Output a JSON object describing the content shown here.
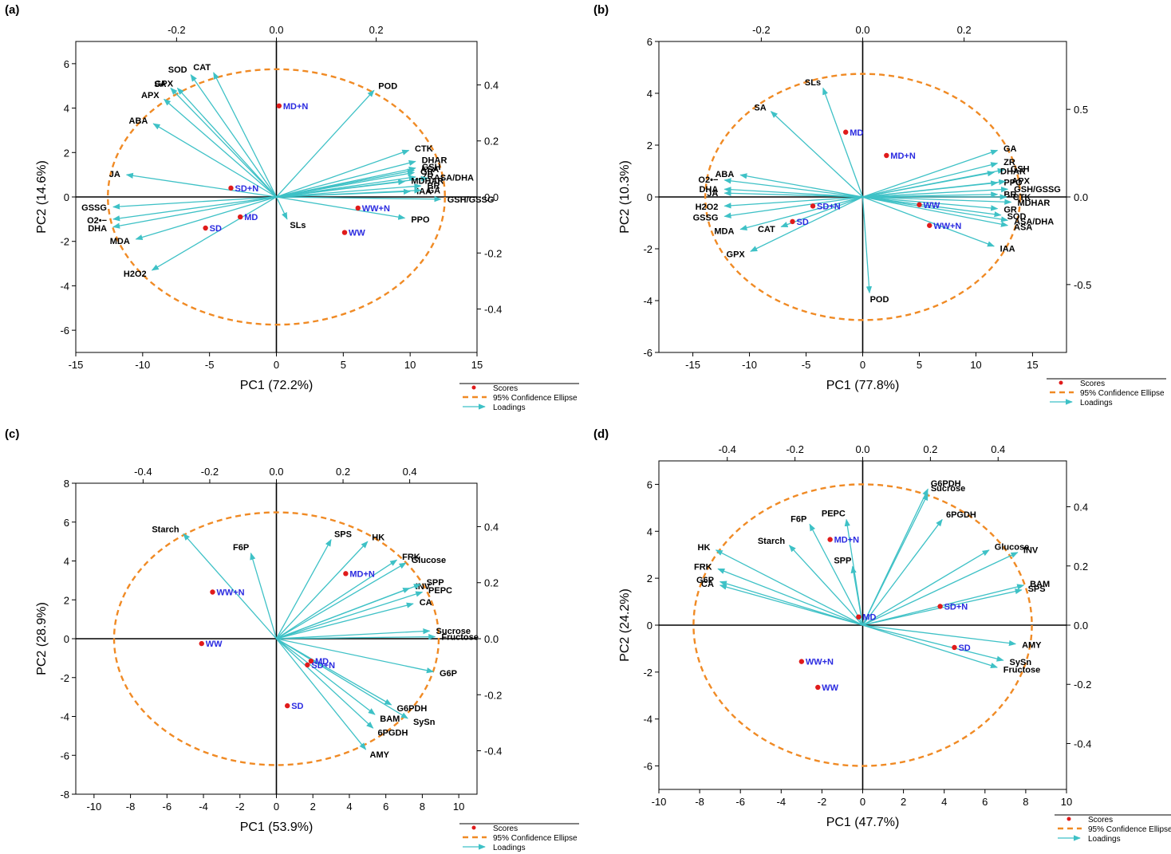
{
  "colors": {
    "axis": "#000000",
    "score": "#e01b1b",
    "score_label": "#2a2ae0",
    "loading": "#3ec1c6",
    "loading_label": "#000000",
    "ellipse": "#f08a24"
  },
  "legend": {
    "scores": "Scores",
    "ellipse": "95% Confidence Ellipse",
    "loadings": "Loadings"
  },
  "chart_data": [
    {
      "type": "scatter",
      "panel_label": "(a)",
      "xlabel": "PC1 (72.2%)",
      "ylabel": "PC2 (14.6%)",
      "xlim": [
        -15,
        15
      ],
      "ylim": [
        -7,
        7
      ],
      "x_ticks": [
        -15,
        -10,
        -5,
        0,
        5,
        10,
        15
      ],
      "y_ticks": [
        -6,
        -4,
        -2,
        0,
        2,
        4,
        6
      ],
      "top_ticks": [
        "-0.2",
        "0.0",
        "0.2"
      ],
      "right_ticks": [
        "0.4",
        "0.2",
        "0.0",
        "-0.2",
        "-0.4"
      ],
      "legend_placement": "bottom-right",
      "ellipse": {
        "cx": 0,
        "cy": 0,
        "rx": 12.6,
        "ry": 5.75
      },
      "scores": [
        {
          "label": "MD+N",
          "x": 0.2,
          "y": 4.1
        },
        {
          "label": "SD+N",
          "x": -3.4,
          "y": 0.4
        },
        {
          "label": "MD",
          "x": -2.7,
          "y": -0.9
        },
        {
          "label": "SD",
          "x": -5.3,
          "y": -1.4
        },
        {
          "label": "WW+N",
          "x": 6.1,
          "y": -0.5
        },
        {
          "label": "WW",
          "x": 5.1,
          "y": -1.6
        }
      ],
      "loadings": [
        {
          "label": "SOD",
          "x": -6.4,
          "y": 5.5
        },
        {
          "label": "CAT",
          "x": -4.7,
          "y": 5.6
        },
        {
          "label": "SA",
          "x": -7.9,
          "y": 4.9
        },
        {
          "label": "GPX",
          "x": -7.4,
          "y": 4.9
        },
        {
          "label": "APX",
          "x": -8.4,
          "y": 4.4
        },
        {
          "label": "ABA",
          "x": -9.2,
          "y": 3.3
        },
        {
          "label": "JA",
          "x": -11.2,
          "y": 1.0
        },
        {
          "label": "GSSG",
          "x": -12.2,
          "y": -0.45
        },
        {
          "label": "O2•−",
          "x": -12.2,
          "y": -1.0
        },
        {
          "label": "DHA",
          "x": -12.2,
          "y": -1.35
        },
        {
          "label": "MDA",
          "x": -10.5,
          "y": -1.9
        },
        {
          "label": "H2O2",
          "x": -9.3,
          "y": -3.3
        },
        {
          "label": "POD",
          "x": 7.3,
          "y": 4.8
        },
        {
          "label": "CTK",
          "x": 9.9,
          "y": 2.1
        },
        {
          "label": "DHAR",
          "x": 10.4,
          "y": 1.6
        },
        {
          "label": "ASA",
          "x": 10.3,
          "y": 1.2
        },
        {
          "label": "GSH",
          "x": 10.4,
          "y": 1.3
        },
        {
          "label": "GR",
          "x": 10.3,
          "y": 1.1
        },
        {
          "label": "ZR",
          "x": 10.4,
          "y": 0.9
        },
        {
          "label": "ASA/DHA",
          "x": 11.3,
          "y": 0.85
        },
        {
          "label": "MDHAR",
          "x": 9.6,
          "y": 0.7
        },
        {
          "label": "BR",
          "x": 10.8,
          "y": 0.5
        },
        {
          "label": "IAA",
          "x": 10.0,
          "y": 0.25
        },
        {
          "label": "GA",
          "x": 10.8,
          "y": 0.3
        },
        {
          "label": "GSH/GSSG",
          "x": 12.3,
          "y": -0.1
        },
        {
          "label": "PPO",
          "x": 9.6,
          "y": -0.95
        },
        {
          "label": "SLs",
          "x": 0.8,
          "y": -1.0
        }
      ]
    },
    {
      "type": "scatter",
      "panel_label": "(b)",
      "xlabel": "PC1 (77.8%)",
      "ylabel": "PC2 (10.3%)",
      "xlim": [
        -18,
        18
      ],
      "ylim": [
        -6,
        6
      ],
      "x_ticks": [
        -15,
        -10,
        -5,
        0,
        5,
        10,
        15
      ],
      "y_ticks": [
        -6,
        -4,
        -2,
        0,
        2,
        4,
        6
      ],
      "top_ticks": [
        "-0.2",
        "0.0",
        "0.2"
      ],
      "right_ticks": [
        "0.5",
        "0.0",
        "-0.5"
      ],
      "legend_placement": "bottom-right",
      "ellipse": {
        "cx": 0,
        "cy": 0,
        "rx": 13.9,
        "ry": 4.75
      },
      "scores": [
        {
          "label": "MD",
          "x": -1.5,
          "y": 2.5
        },
        {
          "label": "MD+N",
          "x": 2.1,
          "y": 1.6
        },
        {
          "label": "SD+N",
          "x": -4.4,
          "y": -0.35
        },
        {
          "label": "SD",
          "x": -6.2,
          "y": -0.95
        },
        {
          "label": "WW",
          "x": 5.0,
          "y": -0.3
        },
        {
          "label": "WW+N",
          "x": 5.9,
          "y": -1.1
        }
      ],
      "loadings": [
        {
          "label": "SLs",
          "x": -3.5,
          "y": 4.2
        },
        {
          "label": "SA",
          "x": -8.1,
          "y": 3.3
        },
        {
          "label": "ABA",
          "x": -10.8,
          "y": 0.85
        },
        {
          "label": "O2•−",
          "x": -12.2,
          "y": 0.65
        },
        {
          "label": "DHA",
          "x": -12.2,
          "y": 0.3
        },
        {
          "label": "JA",
          "x": -12.2,
          "y": 0.15
        },
        {
          "label": "H2O2",
          "x": -12.2,
          "y": -0.35
        },
        {
          "label": "GSSG",
          "x": -12.2,
          "y": -0.75
        },
        {
          "label": "MDA",
          "x": -10.8,
          "y": -1.25
        },
        {
          "label": "CAT",
          "x": -7.2,
          "y": -1.15
        },
        {
          "label": "GPX",
          "x": -9.9,
          "y": -2.1
        },
        {
          "label": "POD",
          "x": 0.6,
          "y": -3.7
        },
        {
          "label": "GA",
          "x": 11.9,
          "y": 1.8
        },
        {
          "label": "ZR",
          "x": 11.9,
          "y": 1.3
        },
        {
          "label": "GSH",
          "x": 12.5,
          "y": 1.05
        },
        {
          "label": "DHAR",
          "x": 11.6,
          "y": 0.95
        },
        {
          "label": "PPO",
          "x": 11.9,
          "y": 0.55
        },
        {
          "label": "APX",
          "x": 12.6,
          "y": 0.6
        },
        {
          "label": "GSH/GSSG",
          "x": 12.8,
          "y": 0.3
        },
        {
          "label": "BR",
          "x": 11.9,
          "y": 0.1
        },
        {
          "label": "CTK",
          "x": 12.7,
          "y": 0.0
        },
        {
          "label": "MDHAR",
          "x": 13.1,
          "y": -0.2
        },
        {
          "label": "GR",
          "x": 11.9,
          "y": -0.45
        },
        {
          "label": "SOD",
          "x": 12.2,
          "y": -0.7
        },
        {
          "label": "ASA/DHA",
          "x": 12.8,
          "y": -0.9
        },
        {
          "label": "ASA",
          "x": 12.8,
          "y": -1.1
        },
        {
          "label": "IAA",
          "x": 11.6,
          "y": -1.9
        }
      ]
    },
    {
      "type": "scatter",
      "panel_label": "(c)",
      "xlabel": "PC1 (53.9%)",
      "ylabel": "PC2 (28.9%)",
      "xlim": [
        -11,
        11
      ],
      "ylim": [
        -8,
        8
      ],
      "x_ticks": [
        -10,
        -8,
        -6,
        -4,
        -2,
        0,
        2,
        4,
        6,
        8,
        10
      ],
      "y_ticks": [
        -8,
        -6,
        -4,
        -2,
        0,
        2,
        4,
        6,
        8
      ],
      "top_ticks": [
        "-0.4",
        "-0.2",
        "0.0",
        "0.2",
        "0.4"
      ],
      "right_ticks": [
        "0.4",
        "0.2",
        "0.0",
        "-0.2",
        "-0.4"
      ],
      "legend_placement": "bottom-right",
      "ellipse": {
        "cx": 0,
        "cy": 0,
        "rx": 8.9,
        "ry": 6.5
      },
      "scores": [
        {
          "label": "WW+N",
          "x": -3.5,
          "y": 2.4
        },
        {
          "label": "WW",
          "x": -4.1,
          "y": -0.25
        },
        {
          "label": "MD+N",
          "x": 3.8,
          "y": 3.35
        },
        {
          "label": "MD",
          "x": 1.9,
          "y": -1.15
        },
        {
          "label": "SD+N",
          "x": 1.7,
          "y": -1.35
        },
        {
          "label": "SD",
          "x": 0.6,
          "y": -3.45
        }
      ],
      "loadings": [
        {
          "label": "Starch",
          "x": -5.1,
          "y": 5.4
        },
        {
          "label": "F6P",
          "x": -1.4,
          "y": 4.4
        },
        {
          "label": "SPS",
          "x": 3.0,
          "y": 5.1
        },
        {
          "label": "HK",
          "x": 5.0,
          "y": 5.0
        },
        {
          "label": "FRK",
          "x": 6.6,
          "y": 4.05
        },
        {
          "label": "Glucose",
          "x": 7.1,
          "y": 3.9
        },
        {
          "label": "INV",
          "x": 7.3,
          "y": 2.6
        },
        {
          "label": "SPP",
          "x": 7.9,
          "y": 2.8
        },
        {
          "label": "PEPC",
          "x": 8.0,
          "y": 2.4
        },
        {
          "label": "CA",
          "x": 7.5,
          "y": 1.8
        },
        {
          "label": "Sucrose",
          "x": 8.4,
          "y": 0.4
        },
        {
          "label": "Fructose",
          "x": 8.7,
          "y": 0.1
        },
        {
          "label": "G6P",
          "x": 8.6,
          "y": -1.7
        },
        {
          "label": "G6PDH",
          "x": 6.3,
          "y": -3.4
        },
        {
          "label": "SySn",
          "x": 7.2,
          "y": -4.1
        },
        {
          "label": "BAM",
          "x": 5.4,
          "y": -3.9
        },
        {
          "label": "6PGDH",
          "x": 5.3,
          "y": -4.6
        },
        {
          "label": "AMY",
          "x": 4.9,
          "y": -5.7
        }
      ]
    },
    {
      "type": "scatter",
      "panel_label": "(d)",
      "xlabel": "PC1 (47.7%)",
      "ylabel": "PC2 (24.2%)",
      "xlim": [
        -10,
        10
      ],
      "ylim": [
        -7,
        7
      ],
      "x_ticks": [
        -10,
        -8,
        -6,
        -4,
        -2,
        0,
        2,
        4,
        6,
        8,
        10
      ],
      "y_ticks": [
        -6,
        -4,
        -2,
        0,
        2,
        4,
        6
      ],
      "top_ticks": [
        "-0.4",
        "-0.2",
        "0.0",
        "0.2",
        "0.4"
      ],
      "right_ticks": [
        "0.4",
        "0.2",
        "0.0",
        "-0.2",
        "-0.4"
      ],
      "legend_placement": "bottom-right",
      "ellipse": {
        "cx": 0,
        "cy": 0,
        "rx": 8.3,
        "ry": 6.0
      },
      "scores": [
        {
          "label": "MD+N",
          "x": -1.6,
          "y": 3.65
        },
        {
          "label": "MD",
          "x": -0.2,
          "y": 0.35
        },
        {
          "label": "SD+N",
          "x": 3.8,
          "y": 0.8
        },
        {
          "label": "SD",
          "x": 4.5,
          "y": -0.95
        },
        {
          "label": "WW+N",
          "x": -3.0,
          "y": -1.55
        },
        {
          "label": "WW",
          "x": -2.2,
          "y": -2.65
        }
      ],
      "loadings": [
        {
          "label": "G6PDH",
          "x": 3.2,
          "y": 5.8
        },
        {
          "label": "Sucrose",
          "x": 3.2,
          "y": 5.6
        },
        {
          "label": "6PGDH",
          "x": 3.9,
          "y": 4.5
        },
        {
          "label": "PEPC",
          "x": -0.8,
          "y": 4.5
        },
        {
          "label": "F6P",
          "x": -2.6,
          "y": 4.3
        },
        {
          "label": "Starch",
          "x": -3.6,
          "y": 3.4
        },
        {
          "label": "SPP",
          "x": -0.5,
          "y": 2.5
        },
        {
          "label": "HK",
          "x": -7.2,
          "y": 3.2
        },
        {
          "label": "FRK",
          "x": -7.1,
          "y": 2.4
        },
        {
          "label": "G6P",
          "x": -7.0,
          "y": 1.85
        },
        {
          "label": "CA",
          "x": -7.0,
          "y": 1.7
        },
        {
          "label": "Glucose",
          "x": 6.2,
          "y": 3.2
        },
        {
          "label": "INV",
          "x": 7.6,
          "y": 3.1
        },
        {
          "label": "BAM",
          "x": 7.9,
          "y": 1.7
        },
        {
          "label": "SPS",
          "x": 7.8,
          "y": 1.5
        },
        {
          "label": "AMY",
          "x": 7.5,
          "y": -0.8
        },
        {
          "label": "SySn",
          "x": 6.9,
          "y": -1.5
        },
        {
          "label": "Fructose",
          "x": 6.6,
          "y": -1.8
        }
      ]
    }
  ]
}
